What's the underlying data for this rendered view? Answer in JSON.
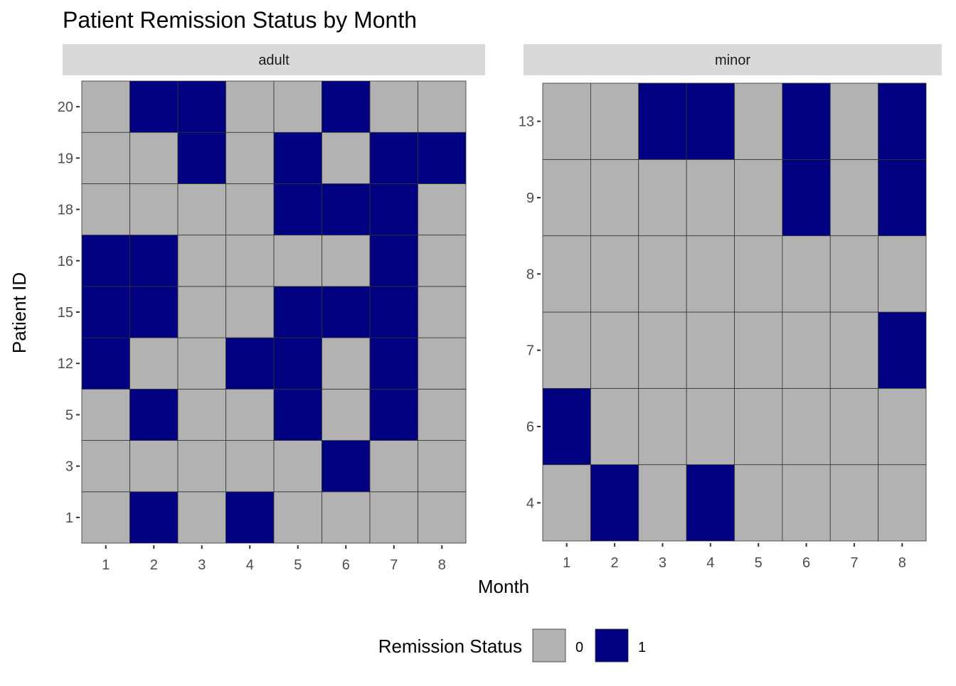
{
  "chart_data": {
    "type": "heatmap",
    "title": "Patient Remission Status by Month",
    "xlabel": "Month",
    "ylabel": "Patient ID",
    "legend": {
      "title": "Remission Status",
      "position": "bottom",
      "entries": [
        {
          "label": "0",
          "value": 0
        },
        {
          "label": "1",
          "value": 1
        }
      ]
    },
    "colors": {
      "0": "#b2b2b2",
      "1": "#000080"
    },
    "x_categories": [
      "1",
      "2",
      "3",
      "4",
      "5",
      "6",
      "7",
      "8"
    ],
    "grid": false,
    "panels": [
      {
        "name": "adult",
        "y_categories": [
          "1",
          "3",
          "5",
          "12",
          "15",
          "16",
          "18",
          "19",
          "20"
        ],
        "values": [
          [
            0,
            1,
            0,
            1,
            0,
            0,
            0,
            0
          ],
          [
            0,
            0,
            0,
            0,
            0,
            1,
            0,
            0
          ],
          [
            0,
            1,
            0,
            0,
            1,
            0,
            1,
            0
          ],
          [
            1,
            0,
            0,
            1,
            1,
            0,
            1,
            0
          ],
          [
            1,
            1,
            0,
            0,
            1,
            1,
            1,
            0
          ],
          [
            1,
            1,
            0,
            0,
            0,
            0,
            1,
            0
          ],
          [
            0,
            0,
            0,
            0,
            1,
            1,
            1,
            0
          ],
          [
            0,
            0,
            1,
            0,
            1,
            0,
            1,
            1
          ],
          [
            0,
            1,
            1,
            0,
            0,
            1,
            0,
            0
          ]
        ]
      },
      {
        "name": "minor",
        "y_categories": [
          "4",
          "6",
          "7",
          "8",
          "9",
          "13"
        ],
        "values": [
          [
            0,
            1,
            0,
            1,
            0,
            0,
            0,
            0
          ],
          [
            1,
            0,
            0,
            0,
            0,
            0,
            0,
            0
          ],
          [
            0,
            0,
            0,
            0,
            0,
            0,
            0,
            1
          ],
          [
            0,
            0,
            0,
            0,
            0,
            0,
            0,
            0
          ],
          [
            0,
            0,
            0,
            0,
            0,
            1,
            0,
            1
          ],
          [
            0,
            0,
            1,
            1,
            0,
            1,
            0,
            1
          ]
        ]
      }
    ]
  }
}
